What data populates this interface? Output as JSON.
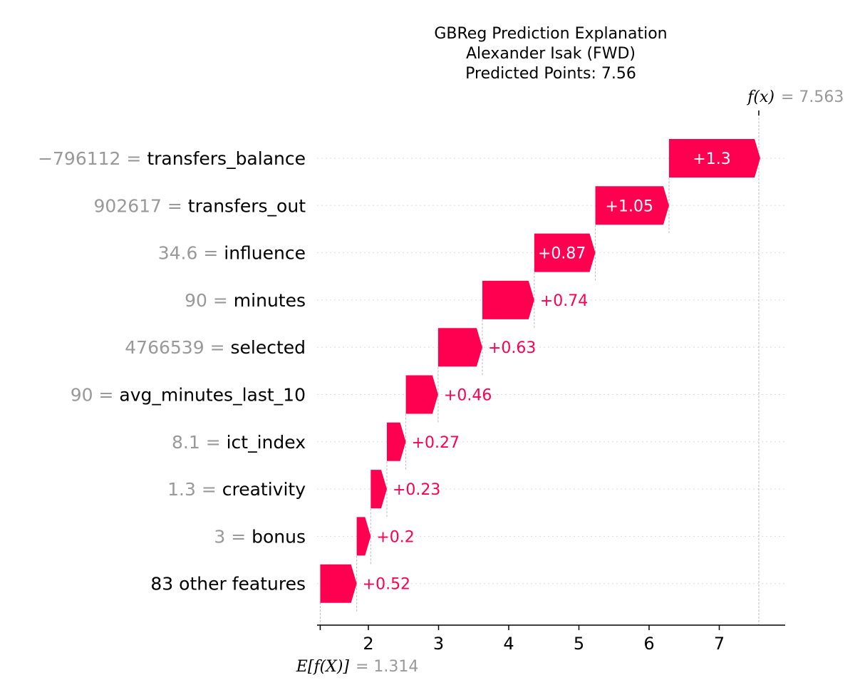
{
  "chart_data": {
    "type": "waterfall",
    "title_lines": [
      "GBReg Prediction Explanation",
      "Alexander Isak (FWD)",
      "Predicted Points: 7.56"
    ],
    "base_value": 1.314,
    "base_label": "E[f(X)]",
    "base_value_text": "= 1.314",
    "output_value": 7.563,
    "output_label": "f(x)",
    "output_value_text": "= 7.563",
    "x_ticks": [
      2,
      3,
      4,
      5,
      6,
      7
    ],
    "xlim": [
      1.31,
      7.93
    ],
    "bar_color": "#ff0051",
    "label_color": "#ff0051",
    "value_text_color": "#999999",
    "features": [
      {
        "value": "−796112",
        "name": "transfers_balance",
        "shap": 1.3,
        "label": "+1.3"
      },
      {
        "value": "902617",
        "name": "transfers_out",
        "shap": 1.05,
        "label": "+1.05"
      },
      {
        "value": "34.6",
        "name": "influence",
        "shap": 0.87,
        "label": "+0.87"
      },
      {
        "value": "90",
        "name": "minutes",
        "shap": 0.74,
        "label": "+0.74"
      },
      {
        "value": "4766539",
        "name": "selected",
        "shap": 0.63,
        "label": "+0.63"
      },
      {
        "value": "90",
        "name": "avg_minutes_last_10",
        "shap": 0.46,
        "label": "+0.46"
      },
      {
        "value": "8.1",
        "name": "ict_index",
        "shap": 0.27,
        "label": "+0.27"
      },
      {
        "value": "1.3",
        "name": "creativity",
        "shap": 0.23,
        "label": "+0.23"
      },
      {
        "value": "3",
        "name": "bonus",
        "shap": 0.2,
        "label": "+0.2"
      },
      {
        "value": "",
        "name": "83 other features",
        "shap": 0.52,
        "label": "+0.52"
      }
    ]
  }
}
